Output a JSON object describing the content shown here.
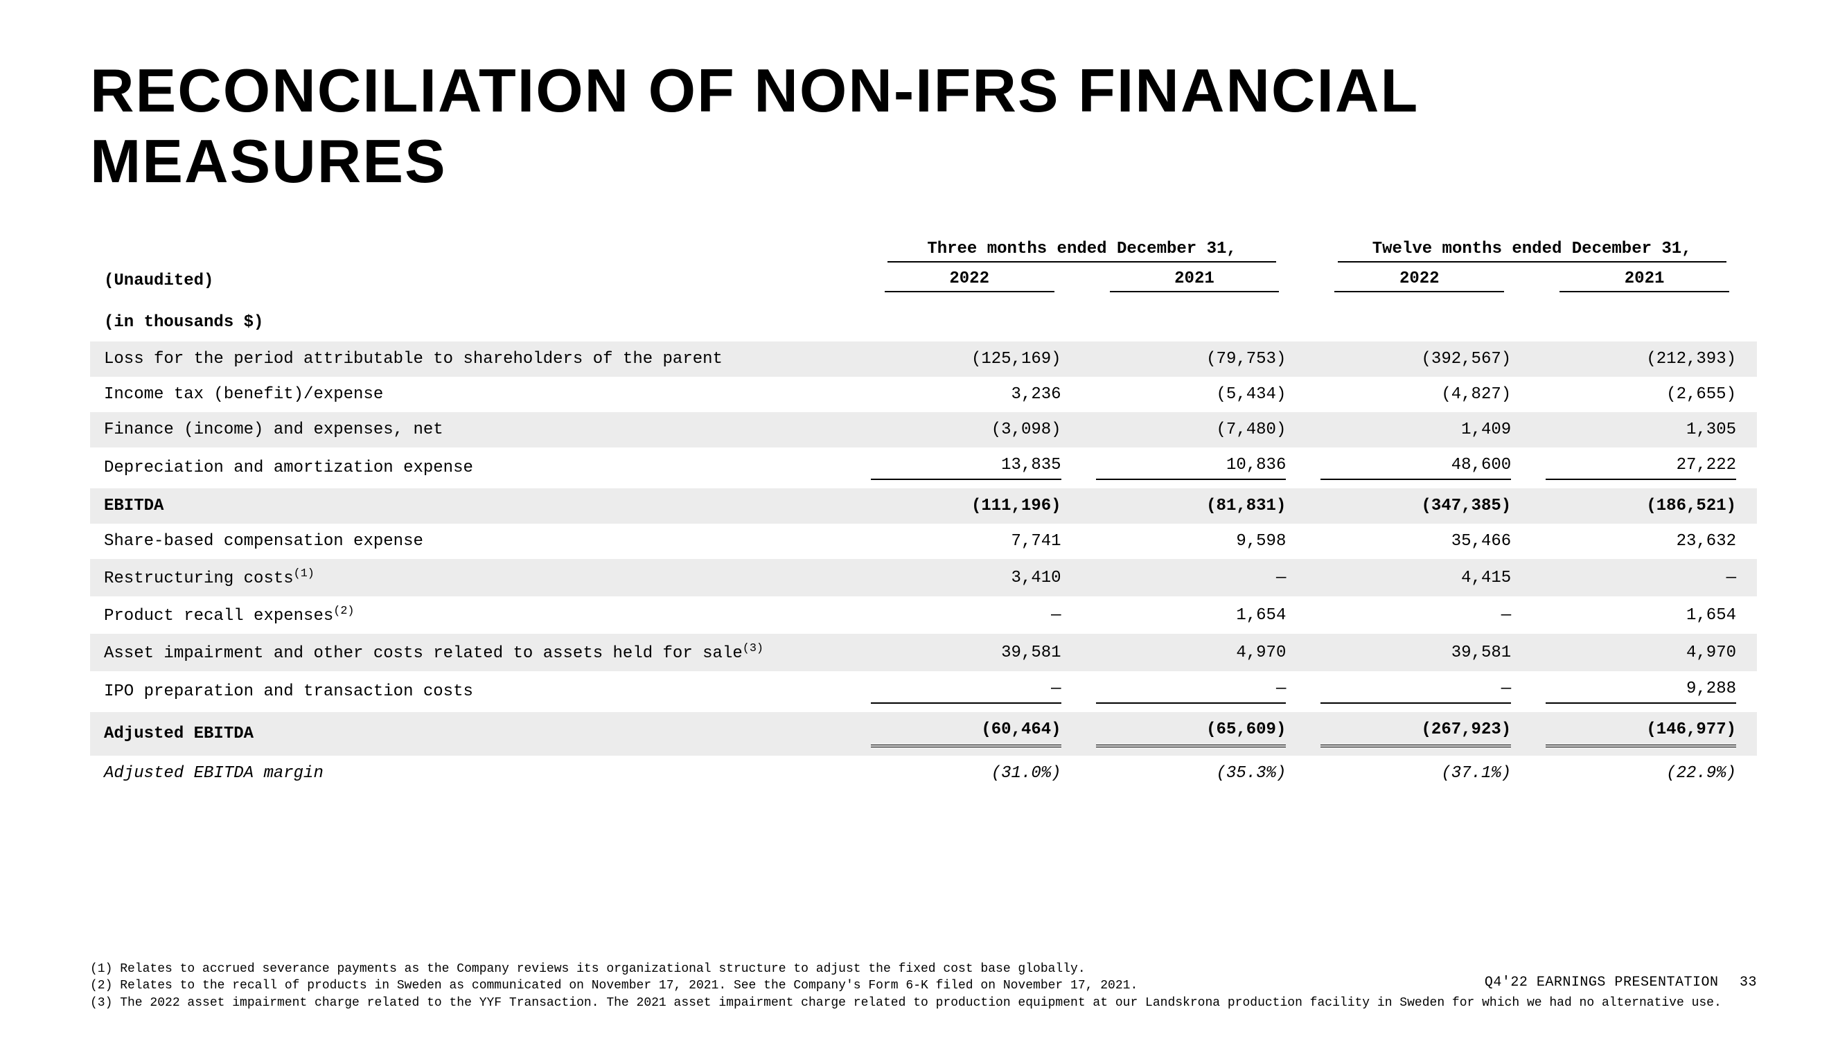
{
  "title": "RECONCILIATION OF NON-IFRS FINANCIAL MEASURES",
  "colors": {
    "background": "#ffffff",
    "band": "#ececec",
    "text": "#000000",
    "rule": "#000000"
  },
  "table": {
    "group_headers": [
      "Three months ended December 31,",
      "Twelve months ended December 31,"
    ],
    "unaudited_label": "(Unaudited)",
    "years": [
      "2022",
      "2021",
      "2022",
      "2021"
    ],
    "subhead": "(in thousands $)",
    "rows": [
      {
        "label": "Loss for the period attributable to shareholders of the parent",
        "values": [
          "(125,169)",
          "(79,753)",
          "(392,567)",
          "(212,393)"
        ],
        "band": true
      },
      {
        "label": "Income tax (benefit)/expense",
        "values": [
          "3,236",
          "(5,434)",
          "(4,827)",
          "(2,655)"
        ],
        "band": false
      },
      {
        "label": "Finance (income) and expenses, net",
        "values": [
          "(3,098)",
          "(7,480)",
          "1,409",
          "1,305"
        ],
        "band": true
      },
      {
        "label": "Depreciation and amortization expense",
        "values": [
          "13,835",
          "10,836",
          "48,600",
          "27,222"
        ],
        "band": false,
        "subtotal_before": true
      },
      {
        "label": "EBITDA",
        "values": [
          "(111,196)",
          "(81,831)",
          "(347,385)",
          "(186,521)"
        ],
        "band": true,
        "bold": true
      },
      {
        "label": "Share-based compensation expense",
        "values": [
          "7,741",
          "9,598",
          "35,466",
          "23,632"
        ],
        "band": false
      },
      {
        "label_html": "Restructuring costs<sup>(1)</sup>",
        "label": "Restructuring costs(1)",
        "values": [
          "3,410",
          "—",
          "4,415",
          "—"
        ],
        "band": true
      },
      {
        "label_html": "Product recall expenses<sup>(2)</sup>",
        "label": "Product recall expenses(2)",
        "values": [
          "—",
          "1,654",
          "—",
          "1,654"
        ],
        "band": false
      },
      {
        "label_html": "Asset impairment and other costs related to assets held for sale<sup>(3)</sup>",
        "label": "Asset impairment and other costs related to assets held for sale(3)",
        "values": [
          "39,581",
          "4,970",
          "39,581",
          "4,970"
        ],
        "band": true
      },
      {
        "label": "IPO preparation and transaction costs",
        "values": [
          "—",
          "—",
          "—",
          "9,288"
        ],
        "band": false,
        "subtotal_before": true
      },
      {
        "label": "Adjusted EBITDA",
        "values": [
          "(60,464)",
          "(65,609)",
          "(267,923)",
          "(146,977)"
        ],
        "band": true,
        "bold": true,
        "dblrule": true
      },
      {
        "label": "Adjusted EBITDA margin",
        "values": [
          "(31.0%)",
          "(35.3%)",
          "(37.1%)",
          "(22.9%)"
        ],
        "band": false,
        "italic": true
      }
    ]
  },
  "footnotes": [
    "(1) Relates to accrued severance payments as the Company reviews its organizational structure to adjust the fixed cost base globally.",
    "(2) Relates to the recall of products in Sweden as communicated on November 17, 2021. See the Company's Form 6-K filed on November 17, 2021.",
    "(3) The 2022 asset impairment charge related to the YYF Transaction. The 2021 asset impairment charge related to production equipment at our Landskrona production facility in Sweden for which we had no alternative use."
  ],
  "footer": {
    "label": "Q4'22 EARNINGS PRESENTATION",
    "page": "33"
  }
}
